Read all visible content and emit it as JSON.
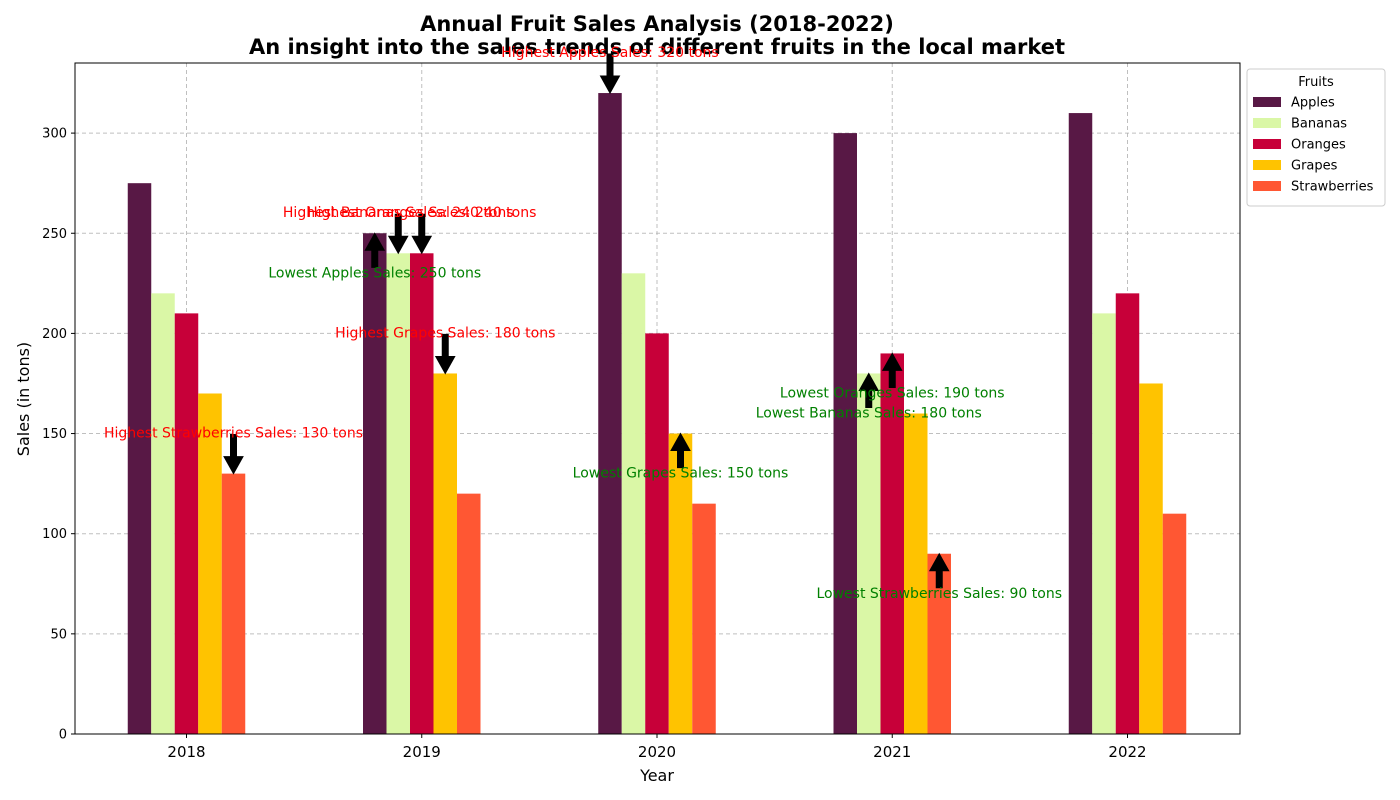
{
  "chart_data": {
    "type": "bar",
    "title": "Annual Fruit Sales Analysis (2018-2022)",
    "subtitle": "An insight into the sales trends of different fruits in the local market",
    "xlabel": "Year",
    "ylabel": "Sales (in tons)",
    "ylim": [
      0,
      335
    ],
    "yticks": [
      0,
      50,
      100,
      150,
      200,
      250,
      300
    ],
    "grid": true,
    "legend_title": "Fruits",
    "legend_position": "outside-top-right",
    "categories": [
      "2018",
      "2019",
      "2020",
      "2021",
      "2022"
    ],
    "series": [
      {
        "name": "Apples",
        "color": "#581845",
        "values": [
          275,
          250,
          320,
          300,
          310
        ]
      },
      {
        "name": "Bananas",
        "color": "#DAF7A6",
        "values": [
          220,
          240,
          230,
          180,
          210
        ]
      },
      {
        "name": "Oranges",
        "color": "#C70039",
        "values": [
          210,
          240,
          200,
          190,
          220
        ]
      },
      {
        "name": "Grapes",
        "color": "#FFC300",
        "values": [
          170,
          180,
          150,
          160,
          175
        ]
      },
      {
        "name": "Strawberries",
        "color": "#FF5733",
        "values": [
          130,
          120,
          115,
          90,
          110
        ]
      }
    ],
    "annotations": [
      {
        "text": "Highest Apples Sales: 320 tons",
        "series": "Apples",
        "category": "2020",
        "value": 320,
        "kind": "highest",
        "color": "#ff0000"
      },
      {
        "text": "Lowest Apples Sales: 250 tons",
        "series": "Apples",
        "category": "2019",
        "value": 250,
        "kind": "lowest",
        "color": "#008000"
      },
      {
        "text": "Highest Bananas Sales: 240 tons",
        "series": "Bananas",
        "category": "2019",
        "value": 240,
        "kind": "highest",
        "color": "#ff0000"
      },
      {
        "text": "Lowest Bananas Sales: 180 tons",
        "series": "Bananas",
        "category": "2021",
        "value": 180,
        "kind": "lowest",
        "color": "#008000"
      },
      {
        "text": "Highest Oranges Sales: 240 tons",
        "series": "Oranges",
        "category": "2019",
        "value": 240,
        "kind": "highest",
        "color": "#ff0000"
      },
      {
        "text": "Lowest Oranges Sales: 190 tons",
        "series": "Oranges",
        "category": "2021",
        "value": 190,
        "kind": "lowest",
        "color": "#008000"
      },
      {
        "text": "Highest Grapes Sales: 180 tons",
        "series": "Grapes",
        "category": "2019",
        "value": 180,
        "kind": "highest",
        "color": "#ff0000"
      },
      {
        "text": "Lowest Grapes Sales: 150 tons",
        "series": "Grapes",
        "category": "2020",
        "value": 150,
        "kind": "lowest",
        "color": "#008000"
      },
      {
        "text": "Highest Strawberries Sales: 130 tons",
        "series": "Strawberries",
        "category": "2018",
        "value": 130,
        "kind": "highest",
        "color": "#ff0000"
      },
      {
        "text": "Lowest Strawberries Sales: 90 tons",
        "series": "Strawberries",
        "category": "2021",
        "value": 90,
        "kind": "lowest",
        "color": "#008000"
      }
    ]
  }
}
